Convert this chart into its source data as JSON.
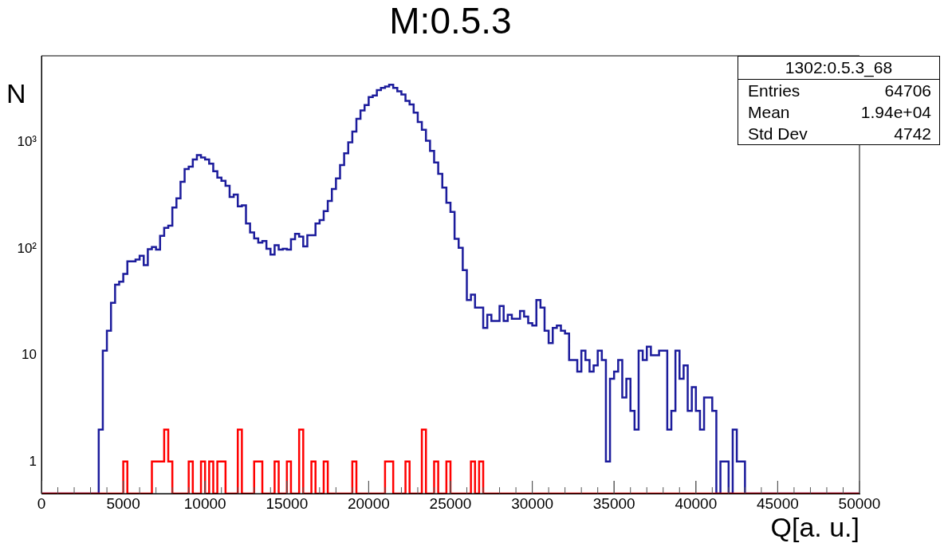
{
  "chart_data": {
    "type": "histogram",
    "title": "M:0.5.3",
    "xlabel": "Q[a. u.]",
    "ylabel": "N",
    "annotations": [
      "1302:0.5.3_68",
      "Entries",
      "64706",
      "Mean",
      "1.94e+04",
      "Std Dev",
      "4742"
    ],
    "bins": [
      0,
      250,
      500,
      750,
      1000,
      1250,
      1500,
      1750,
      2000,
      2250,
      2500,
      2750,
      3000,
      3250,
      3500,
      3750,
      4000,
      4250,
      4500,
      4750,
      5000,
      5250,
      5500,
      5750,
      6000,
      6250,
      6500,
      6750,
      7000,
      7250,
      7500,
      7750,
      8000,
      8250,
      8500,
      8750,
      9000,
      9250,
      9500,
      9750,
      10000,
      10250,
      10500,
      10750,
      11000,
      11250,
      11500,
      11750,
      12000,
      12250,
      12500,
      12750,
      13000,
      13250,
      13500,
      13750,
      14000,
      14250,
      14500,
      14750,
      15000,
      15250,
      15500,
      15750,
      16000,
      16250,
      16500,
      16750,
      17000,
      17250,
      17500,
      17750,
      18000,
      18250,
      18500,
      18750,
      19000,
      19250,
      19500,
      19750,
      20000,
      20250,
      20500,
      20750,
      21000,
      21250,
      21500,
      21750,
      22000,
      22250,
      22500,
      22750,
      23000,
      23250,
      23500,
      23750,
      24000,
      24250,
      24500,
      24750,
      25000,
      25250,
      25500,
      25750,
      26000,
      26250,
      26500,
      26750,
      27000,
      27250,
      27500,
      27750,
      28000,
      28250,
      28500,
      28750,
      29000,
      29250,
      29500,
      29750,
      30000,
      30250,
      30500,
      30750,
      31000,
      31250,
      31500,
      31750,
      32000,
      32250,
      32500,
      32750,
      33000,
      33250,
      33500,
      33750,
      34000,
      34250,
      34500,
      34750,
      35000,
      35250,
      35500,
      35750,
      36000,
      36250,
      36500,
      36750,
      37000,
      37250,
      37500,
      37750,
      38000,
      38250,
      38500,
      38750,
      39000,
      39250,
      39500,
      39750,
      40000,
      40250,
      40500,
      40750,
      41000,
      41250,
      41500,
      41750,
      42000,
      42250,
      42500,
      42750,
      43000,
      43250,
      43500,
      43750,
      44000,
      44250,
      44500,
      44750,
      45000,
      45250,
      45500,
      45750,
      46000,
      46250,
      46500,
      46750,
      47000,
      47250,
      47500,
      47750,
      48000,
      48250,
      48500,
      48750,
      49000,
      49250,
      49500,
      49750,
      50000
    ],
    "series": [
      {
        "color": "#1c1c9c",
        "values": [
          null,
          null,
          null,
          null,
          null,
          null,
          null,
          null,
          null,
          null,
          null,
          null,
          null,
          null,
          2,
          11,
          17,
          31,
          46,
          49,
          58,
          76,
          76,
          79,
          86,
          70,
          99,
          104,
          98,
          132,
          157,
          165,
          244,
          297,
          425,
          562,
          590,
          690,
          760,
          720,
          690,
          630,
          535,
          465,
          435,
          390,
          307,
          323,
          250,
          256,
          173,
          142,
          125,
          114,
          118,
          100,
          88,
          108,
          98,
          100,
          98,
          123,
          138,
          130,
          105,
          134,
          134,
          173,
          186,
          226,
          281,
          364,
          458,
          612,
          790,
          1000,
          1260,
          1660,
          1990,
          2240,
          2660,
          2750,
          3090,
          3240,
          3350,
          3480,
          3250,
          3020,
          2810,
          2450,
          2270,
          1900,
          1550,
          1310,
          1035,
          830,
          646,
          505,
          376,
          270,
          222,
          124,
          102,
          63,
          33,
          37,
          28,
          28,
          18,
          24,
          21,
          21,
          29,
          21,
          24,
          22,
          22,
          26,
          23,
          20,
          19,
          33,
          28,
          17,
          13,
          18,
          19,
          17,
          16,
          9,
          9,
          7,
          11,
          9,
          7,
          8,
          11,
          9,
          1,
          6,
          7,
          9,
          4,
          6,
          3,
          2,
          11,
          9,
          12,
          10,
          10,
          11,
          11,
          2,
          3,
          11,
          6,
          8,
          3,
          5,
          3,
          2,
          4,
          4,
          3,
          null,
          1,
          1,
          null,
          2,
          1,
          1,
          null,
          null,
          null,
          null,
          null,
          null,
          null,
          null,
          null,
          null,
          null,
          null,
          null,
          null,
          null,
          null,
          null,
          null,
          null,
          null,
          null,
          null,
          null,
          null,
          null,
          null,
          null,
          null
        ]
      },
      {
        "color": "#ff0000",
        "values": [
          null,
          null,
          null,
          null,
          null,
          null,
          null,
          null,
          null,
          null,
          null,
          null,
          null,
          null,
          null,
          null,
          null,
          null,
          null,
          null,
          1,
          null,
          null,
          null,
          null,
          null,
          null,
          1,
          1,
          1,
          2,
          1,
          null,
          null,
          null,
          null,
          1,
          null,
          null,
          1,
          null,
          1,
          null,
          1,
          1,
          null,
          null,
          null,
          2,
          null,
          null,
          null,
          1,
          1,
          null,
          null,
          null,
          1,
          null,
          null,
          1,
          null,
          null,
          2,
          null,
          null,
          1,
          null,
          null,
          1,
          null,
          null,
          null,
          null,
          null,
          null,
          1,
          null,
          null,
          null,
          null,
          null,
          null,
          null,
          1,
          1,
          null,
          null,
          null,
          1,
          null,
          null,
          null,
          2,
          null,
          null,
          1,
          null,
          null,
          1,
          null,
          null,
          null,
          null,
          null,
          1,
          null,
          1,
          null,
          null,
          null,
          null,
          null,
          null,
          null,
          null,
          null,
          null,
          null,
          null,
          null,
          null,
          null,
          null,
          null,
          null,
          null,
          null,
          null,
          null,
          null,
          null,
          null,
          null,
          null,
          null,
          null,
          null,
          null,
          null,
          null,
          null,
          null,
          null,
          null,
          null,
          null,
          null,
          null,
          null,
          null,
          null,
          null,
          null,
          null,
          null,
          null,
          null,
          null,
          null,
          null,
          null,
          null,
          null,
          null,
          null,
          null,
          null,
          null,
          null,
          null,
          null,
          null,
          null,
          null,
          null,
          null,
          null,
          null,
          null,
          null,
          null,
          null,
          null,
          null,
          null,
          null,
          null,
          null,
          null,
          null,
          null,
          null,
          null,
          null,
          null,
          null,
          null,
          null,
          null
        ]
      }
    ],
    "xlim": [
      0,
      50000
    ],
    "xticks": [
      0,
      5000,
      10000,
      15000,
      20000,
      25000,
      30000,
      35000,
      40000,
      45000,
      50000
    ],
    "ylim": [
      0.5,
      6500
    ],
    "yticks": [
      1,
      10,
      {
        "value": 100,
        "label": "10²"
      },
      {
        "value": 1000,
        "label": "10³"
      }
    ],
    "log": true,
    "legend": false,
    "grid": false
  }
}
